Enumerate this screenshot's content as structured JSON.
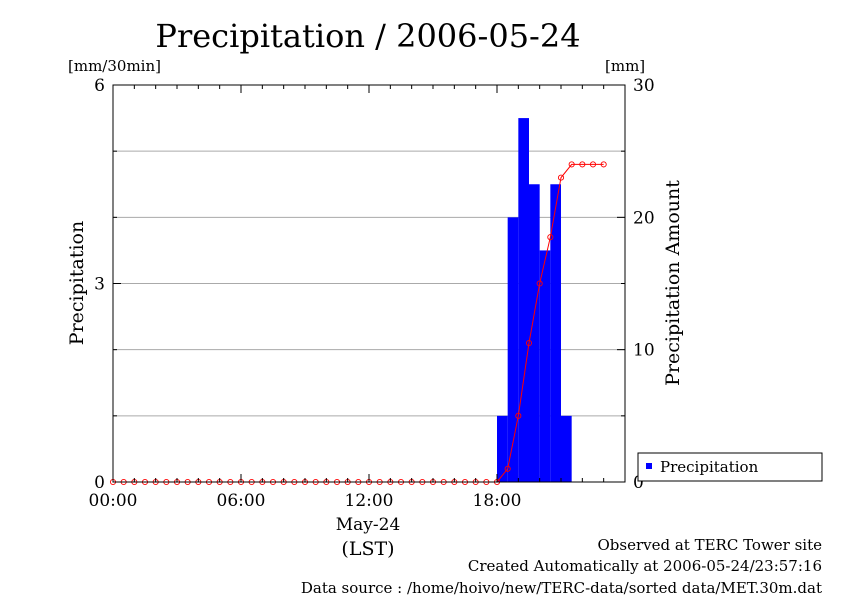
{
  "chart_data": {
    "type": "bar",
    "title": "Precipitation / 2006-05-24",
    "left_axis": {
      "unit": "[mm/30min]",
      "label": "Precipitation",
      "ticks": [
        0,
        3,
        6
      ],
      "range": [
        0,
        6
      ],
      "minor_gridlines": [
        1,
        2,
        4,
        5
      ]
    },
    "right_axis": {
      "unit": "[mm]",
      "label": "Precipitation Amount",
      "ticks": [
        0,
        10,
        20,
        30
      ],
      "range": [
        0,
        30
      ]
    },
    "x_axis": {
      "ticks": [
        "00:00",
        "06:00",
        "12:00",
        "18:00"
      ],
      "date_label": "May-24",
      "tz_label": "(LST)",
      "range_hours": [
        0,
        24
      ]
    },
    "series": [
      {
        "name": "Precipitation",
        "kind": "bar",
        "color": "#0000ff",
        "x_start_hours": [
          18.0,
          18.5,
          19.0,
          19.5,
          20.0,
          20.5,
          21.0,
          21.5,
          22.0,
          22.5,
          23.0,
          23.5
        ],
        "values": [
          1.0,
          4.0,
          5.5,
          4.5,
          3.5,
          4.5,
          1.0,
          0.0,
          0.0,
          0.0,
          0.0,
          0.0
        ]
      },
      {
        "kind": "line",
        "axis": "right",
        "color": "#ff0000",
        "x_hours": [
          0,
          0.5,
          1,
          1.5,
          2,
          2.5,
          3,
          3.5,
          4,
          4.5,
          5,
          5.5,
          6,
          6.5,
          7,
          7.5,
          8,
          8.5,
          9,
          9.5,
          10,
          10.5,
          11,
          11.5,
          12,
          12.5,
          13,
          13.5,
          14,
          14.5,
          15,
          15.5,
          16,
          16.5,
          17,
          17.5,
          18,
          18.5,
          19,
          19.5,
          20,
          20.5,
          21,
          21.5,
          22,
          22.5,
          23
        ],
        "values": [
          0,
          0,
          0,
          0,
          0,
          0,
          0,
          0,
          0,
          0,
          0,
          0,
          0,
          0,
          0,
          0,
          0,
          0,
          0,
          0,
          0,
          0,
          0,
          0,
          0,
          0,
          0,
          0,
          0,
          0,
          0,
          0,
          0,
          0,
          0,
          0,
          0,
          1,
          5,
          10.5,
          15,
          18.5,
          23,
          24,
          24,
          24,
          24
        ]
      }
    ],
    "legend": {
      "items": [
        "Precipitation"
      ],
      "placement": "bottom-right"
    }
  },
  "footer": {
    "line1": "Observed at TERC Tower site",
    "line2": "Created Automatically at 2006-05-24/23:57:16",
    "line3": "Data source : /home/hoivo/new/TERC-data/sorted  data/MET.30m.dat"
  }
}
